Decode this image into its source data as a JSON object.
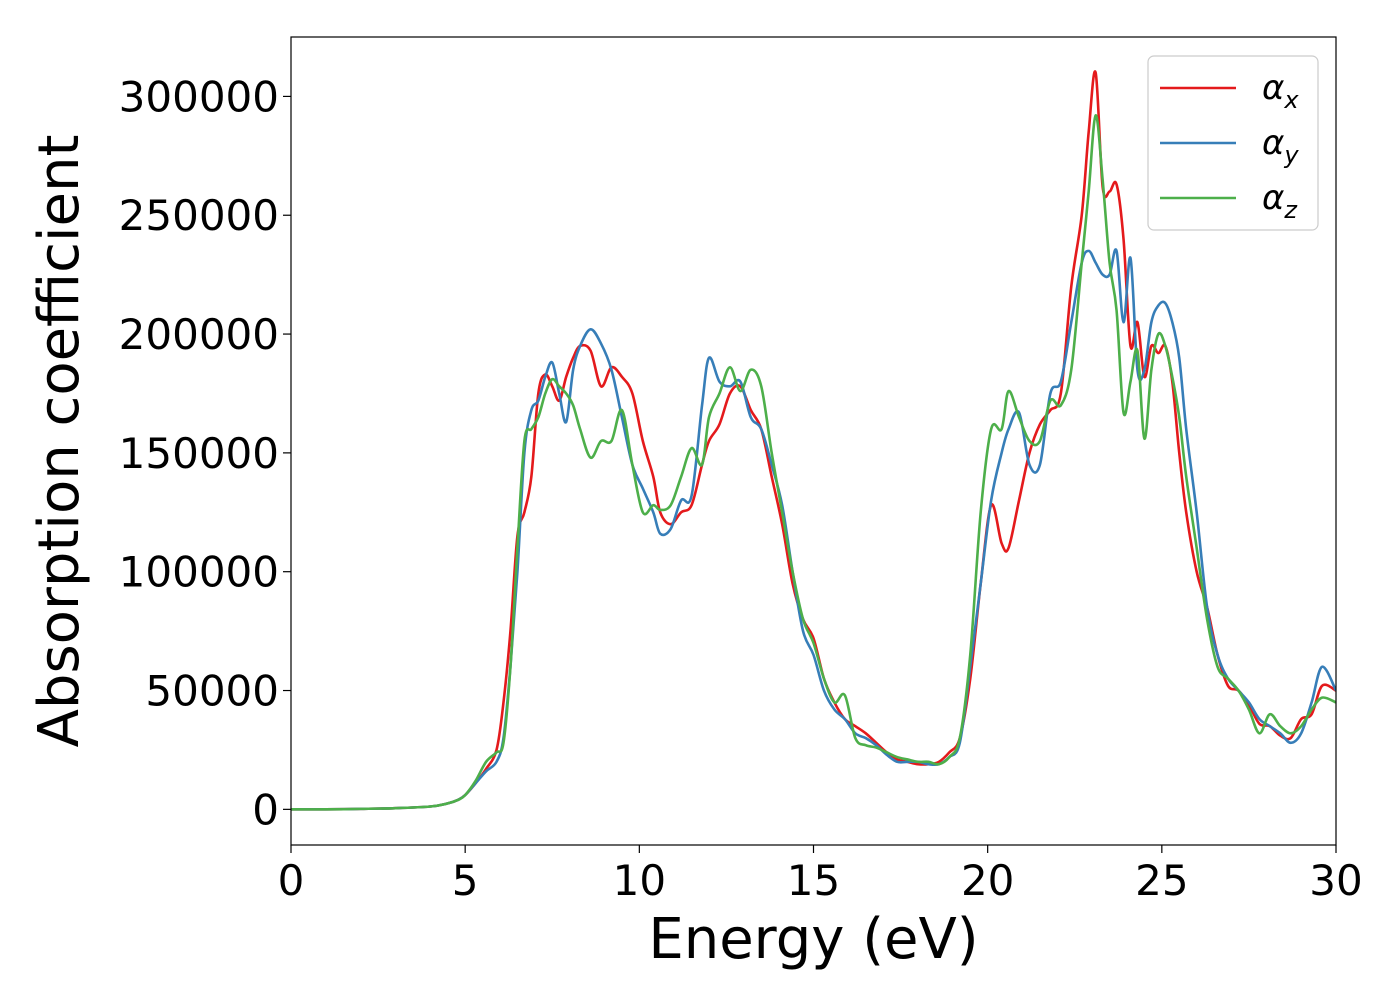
{
  "chart_data": {
    "type": "line",
    "title": "",
    "xlabel": "Energy (eV)",
    "ylabel": "Absorption coefficient",
    "xlim": [
      0,
      30
    ],
    "ylim": [
      -15000,
      325000
    ],
    "xticks": [
      0,
      5,
      10,
      15,
      20,
      25,
      30
    ],
    "xtick_labels": [
      "0",
      "5",
      "10",
      "15",
      "20",
      "25",
      "30"
    ],
    "yticks": [
      0,
      50000,
      100000,
      150000,
      200000,
      250000,
      300000
    ],
    "ytick_labels": [
      "0",
      "50000",
      "100000",
      "150000",
      "200000",
      "250000",
      "300000"
    ],
    "grid": false,
    "legend_position": "top-right",
    "series": [
      {
        "name": "α",
        "sub": "x",
        "color": "#e41a1c",
        "x": [
          0,
          1,
          2,
          3,
          4,
          4.5,
          4.8,
          5.0,
          5.3,
          5.6,
          5.9,
          6.1,
          6.3,
          6.5,
          6.7,
          6.9,
          7.1,
          7.3,
          7.5,
          7.7,
          7.9,
          8.1,
          8.3,
          8.6,
          8.9,
          9.2,
          9.5,
          9.8,
          10.1,
          10.4,
          10.6,
          10.9,
          11.2,
          11.5,
          11.8,
          12.0,
          12.3,
          12.6,
          12.9,
          13.2,
          13.5,
          13.8,
          14.1,
          14.4,
          14.7,
          15.0,
          15.3,
          15.6,
          15.9,
          16.2,
          16.5,
          16.8,
          17.1,
          17.4,
          17.7,
          18.0,
          18.3,
          18.6,
          18.9,
          19.2,
          19.5,
          19.8,
          20.1,
          20.4,
          20.6,
          20.9,
          21.2,
          21.5,
          21.8,
          22.1,
          22.4,
          22.7,
          22.9,
          23.1,
          23.3,
          23.5,
          23.7,
          23.9,
          24.1,
          24.3,
          24.5,
          24.7,
          24.9,
          25.1,
          25.3,
          25.5,
          25.7,
          26.0,
          26.3,
          26.6,
          26.9,
          27.2,
          27.5,
          27.8,
          28.1,
          28.4,
          28.7,
          29.0,
          29.3,
          29.6,
          30.0
        ],
        "values": [
          0,
          0,
          200,
          500,
          1200,
          2500,
          4000,
          6000,
          11000,
          17000,
          25000,
          45000,
          75000,
          115000,
          125000,
          140000,
          175000,
          183000,
          178000,
          172000,
          182000,
          190000,
          195000,
          193000,
          178000,
          186000,
          182000,
          175000,
          155000,
          140000,
          125000,
          120000,
          125000,
          128000,
          145000,
          155000,
          162000,
          175000,
          178000,
          168000,
          160000,
          140000,
          120000,
          95000,
          80000,
          72000,
          55000,
          45000,
          38000,
          35000,
          32000,
          28000,
          24000,
          21000,
          20000,
          19000,
          19000,
          20000,
          24000,
          30000,
          55000,
          95000,
          128000,
          112000,
          110000,
          130000,
          150000,
          162000,
          168000,
          175000,
          220000,
          250000,
          285000,
          310000,
          262000,
          260000,
          263000,
          240000,
          195000,
          205000,
          182000,
          195000,
          192000,
          195000,
          180000,
          150000,
          125000,
          100000,
          85000,
          65000,
          52000,
          50000,
          44000,
          36000,
          35000,
          31000,
          30000,
          38000,
          40000,
          52000,
          50000
        ]
      },
      {
        "name": "α",
        "sub": "y",
        "color": "#377eb8",
        "x": [
          0,
          1,
          2,
          3,
          4,
          4.5,
          4.8,
          5.0,
          5.3,
          5.6,
          5.9,
          6.1,
          6.3,
          6.5,
          6.7,
          6.9,
          7.1,
          7.3,
          7.5,
          7.7,
          7.9,
          8.1,
          8.3,
          8.6,
          8.9,
          9.2,
          9.5,
          9.8,
          10.1,
          10.4,
          10.6,
          10.9,
          11.2,
          11.5,
          11.8,
          12.0,
          12.3,
          12.6,
          12.9,
          13.2,
          13.5,
          13.8,
          14.1,
          14.4,
          14.7,
          15.0,
          15.3,
          15.6,
          15.9,
          16.2,
          16.5,
          16.8,
          17.1,
          17.4,
          17.7,
          18.0,
          18.3,
          18.6,
          18.9,
          19.2,
          19.5,
          19.8,
          20.1,
          20.4,
          20.6,
          20.9,
          21.2,
          21.5,
          21.8,
          22.1,
          22.4,
          22.7,
          22.9,
          23.1,
          23.3,
          23.5,
          23.7,
          23.9,
          24.1,
          24.3,
          24.5,
          24.7,
          24.9,
          25.1,
          25.3,
          25.5,
          25.7,
          26.0,
          26.3,
          26.6,
          26.9,
          27.2,
          27.5,
          27.8,
          28.1,
          28.4,
          28.7,
          29.0,
          29.3,
          29.6,
          30.0
        ],
        "values": [
          0,
          0,
          200,
          500,
          1200,
          2500,
          4000,
          6000,
          11000,
          16000,
          20000,
          30000,
          60000,
          100000,
          150000,
          168000,
          172000,
          182000,
          188000,
          175000,
          163000,
          185000,
          195000,
          202000,
          196000,
          185000,
          165000,
          145000,
          135000,
          125000,
          116000,
          118000,
          130000,
          132000,
          170000,
          190000,
          180000,
          178000,
          180000,
          165000,
          160000,
          145000,
          128000,
          100000,
          75000,
          65000,
          50000,
          42000,
          38000,
          32000,
          30000,
          27000,
          23000,
          20000,
          20000,
          20000,
          19000,
          19000,
          22000,
          28000,
          60000,
          95000,
          130000,
          150000,
          160000,
          167000,
          145000,
          145000,
          175000,
          180000,
          205000,
          230000,
          235000,
          230000,
          225000,
          225000,
          235000,
          205000,
          232000,
          185000,
          185000,
          205000,
          212000,
          213000,
          205000,
          190000,
          160000,
          125000,
          85000,
          65000,
          55000,
          50000,
          45000,
          38000,
          35000,
          32000,
          28000,
          32000,
          45000,
          60000,
          50000
        ]
      },
      {
        "name": "α",
        "sub": "z",
        "color": "#4daf4a",
        "x": [
          0,
          1,
          2,
          3,
          4,
          4.5,
          4.8,
          5.0,
          5.3,
          5.6,
          5.9,
          6.1,
          6.3,
          6.5,
          6.7,
          6.9,
          7.1,
          7.3,
          7.5,
          7.7,
          7.9,
          8.1,
          8.3,
          8.6,
          8.9,
          9.2,
          9.5,
          9.8,
          10.1,
          10.4,
          10.6,
          10.9,
          11.2,
          11.5,
          11.8,
          12.0,
          12.3,
          12.6,
          12.9,
          13.2,
          13.5,
          13.8,
          14.1,
          14.4,
          14.7,
          15.0,
          15.3,
          15.6,
          15.9,
          16.2,
          16.5,
          16.8,
          17.1,
          17.4,
          17.7,
          18.0,
          18.3,
          18.6,
          18.9,
          19.2,
          19.5,
          19.8,
          20.1,
          20.4,
          20.6,
          20.9,
          21.2,
          21.5,
          21.8,
          22.1,
          22.4,
          22.7,
          22.9,
          23.1,
          23.3,
          23.5,
          23.7,
          23.9,
          24.1,
          24.3,
          24.5,
          24.7,
          24.9,
          25.1,
          25.3,
          25.5,
          25.7,
          26.0,
          26.3,
          26.6,
          26.9,
          27.2,
          27.5,
          27.8,
          28.1,
          28.4,
          28.7,
          29.0,
          29.3,
          29.6,
          30.0
        ],
        "values": [
          0,
          0,
          200,
          500,
          1200,
          2500,
          4000,
          6000,
          12000,
          20000,
          24000,
          28000,
          60000,
          110000,
          155000,
          160000,
          165000,
          175000,
          181000,
          178000,
          175000,
          170000,
          160000,
          148000,
          155000,
          155000,
          168000,
          145000,
          125000,
          128000,
          126000,
          128000,
          140000,
          152000,
          145000,
          165000,
          175000,
          186000,
          176000,
          185000,
          178000,
          150000,
          125000,
          100000,
          80000,
          70000,
          55000,
          45000,
          48000,
          30000,
          27000,
          26000,
          24000,
          22000,
          21000,
          20000,
          20000,
          19000,
          22000,
          30000,
          65000,
          125000,
          160000,
          160000,
          176000,
          165000,
          155000,
          155000,
          172000,
          170000,
          185000,
          230000,
          260000,
          292000,
          265000,
          230000,
          210000,
          167000,
          180000,
          193000,
          156000,
          185000,
          200000,
          195000,
          182000,
          165000,
          140000,
          110000,
          80000,
          60000,
          55000,
          50000,
          42000,
          32000,
          40000,
          35000,
          32000,
          35000,
          42000,
          47000,
          45000
        ]
      }
    ]
  }
}
